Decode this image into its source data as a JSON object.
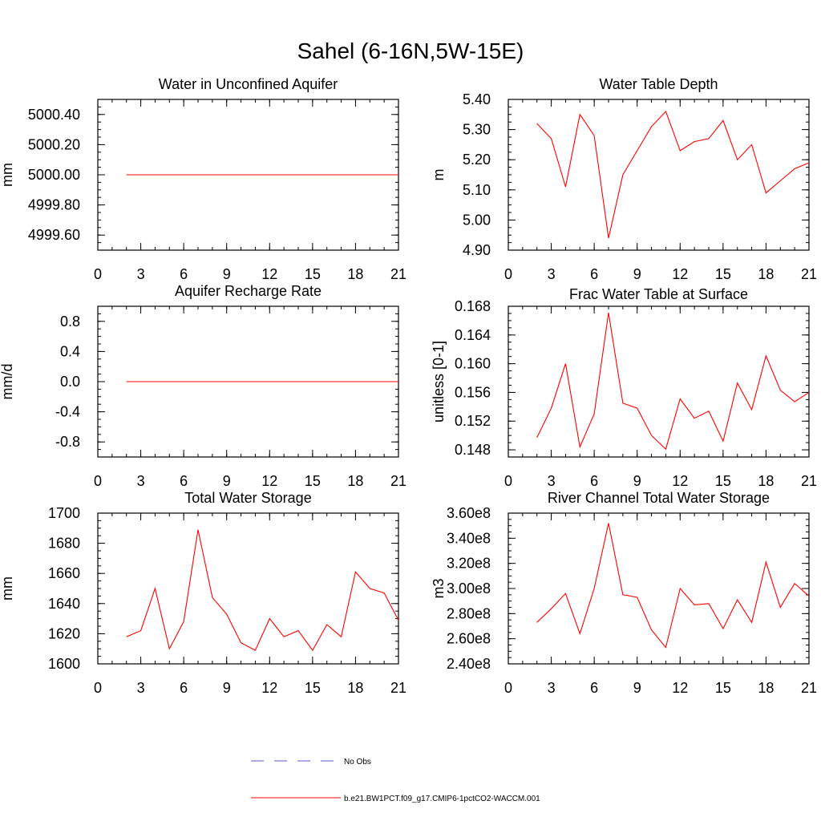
{
  "title": "Sahel (6-16N,5W-15E)",
  "legend": {
    "items": [
      {
        "label": "No Obs",
        "color": "#5a5acd",
        "dash": true
      },
      {
        "label": "b.e21.BW1PCT.f09_g17.CMIP6-1pctCO2-WACCM.001",
        "color": "#ff0000",
        "dash": false
      }
    ]
  },
  "chart_data": [
    {
      "type": "line",
      "title": "Water in Unconfined Aquifer",
      "ylabel": "mm",
      "xlim": [
        0,
        21
      ],
      "ylim": [
        4999.5,
        5000.5
      ],
      "xticks": [
        0,
        3,
        6,
        9,
        12,
        15,
        18,
        21
      ],
      "yticks": [
        4999.6,
        4999.8,
        5000.0,
        5000.2,
        5000.4
      ],
      "ytick_labels": [
        "4999.60",
        "4999.80",
        "5000.00",
        "5000.20",
        "5000.40"
      ],
      "yminor": 0.05,
      "series": [
        {
          "color": "#ff0000",
          "x": [
            2,
            3,
            4,
            5,
            6,
            7,
            8,
            9,
            10,
            11,
            12,
            13,
            14,
            15,
            16,
            17,
            18,
            19,
            20,
            21
          ],
          "y": [
            5000,
            5000,
            5000,
            5000,
            5000,
            5000,
            5000,
            5000,
            5000,
            5000,
            5000,
            5000,
            5000,
            5000,
            5000,
            5000,
            5000,
            5000,
            5000,
            5000
          ]
        }
      ]
    },
    {
      "type": "line",
      "title": "Water Table Depth",
      "ylabel": "m",
      "xlim": [
        0,
        21
      ],
      "ylim": [
        4.9,
        5.4
      ],
      "xticks": [
        0,
        3,
        6,
        9,
        12,
        15,
        18,
        21
      ],
      "yticks": [
        4.9,
        5.0,
        5.1,
        5.2,
        5.3,
        5.4
      ],
      "ytick_labels": [
        "4.90",
        "5.00",
        "5.10",
        "5.20",
        "5.30",
        "5.40"
      ],
      "yminor": 0.025,
      "series": [
        {
          "color": "#ff0000",
          "x": [
            2,
            3,
            4,
            5,
            6,
            7,
            8,
            9,
            10,
            11,
            12,
            13,
            14,
            15,
            16,
            17,
            18,
            19,
            20,
            21
          ],
          "y": [
            5.32,
            5.27,
            5.11,
            5.35,
            5.28,
            4.94,
            5.15,
            5.23,
            5.31,
            5.36,
            5.23,
            5.26,
            5.27,
            5.33,
            5.2,
            5.25,
            5.09,
            5.13,
            5.17,
            5.19
          ]
        }
      ]
    },
    {
      "type": "line",
      "title": "Aquifer Recharge Rate",
      "ylabel": "mm/d",
      "xlim": [
        0,
        21
      ],
      "ylim": [
        -1,
        1
      ],
      "xticks": [
        0,
        3,
        6,
        9,
        12,
        15,
        18,
        21
      ],
      "yticks": [
        -0.8,
        -0.4,
        0.0,
        0.4,
        0.8
      ],
      "ytick_labels": [
        "-0.8",
        "-0.4",
        "0.0",
        "0.4",
        "0.8"
      ],
      "yminor": 0.1,
      "series": [
        {
          "color": "#ff0000",
          "x": [
            2,
            3,
            4,
            5,
            6,
            7,
            8,
            9,
            10,
            11,
            12,
            13,
            14,
            15,
            16,
            17,
            18,
            19,
            20,
            21
          ],
          "y": [
            0,
            0,
            0,
            0,
            0,
            0,
            0,
            0,
            0,
            0,
            0,
            0,
            0,
            0,
            0,
            0,
            0,
            0,
            0,
            0
          ]
        }
      ]
    },
    {
      "type": "line",
      "title": "Frac Water Table at Surface",
      "ylabel": "unitless [0-1]",
      "xlim": [
        0,
        21
      ],
      "ylim": [
        0.147,
        0.168
      ],
      "xticks": [
        0,
        3,
        6,
        9,
        12,
        15,
        18,
        21
      ],
      "yticks": [
        0.148,
        0.152,
        0.156,
        0.16,
        0.164,
        0.168
      ],
      "ytick_labels": [
        "0.148",
        "0.152",
        "0.156",
        "0.160",
        "0.164",
        "0.168"
      ],
      "yminor": 0.001,
      "series": [
        {
          "color": "#ff0000",
          "x": [
            2,
            3,
            4,
            5,
            6,
            7,
            8,
            9,
            10,
            11,
            12,
            13,
            14,
            15,
            16,
            17,
            18,
            19,
            20,
            21
          ],
          "y": [
            0.1497,
            0.1538,
            0.16,
            0.1484,
            0.153,
            0.1671,
            0.1545,
            0.1538,
            0.15,
            0.1481,
            0.1551,
            0.1524,
            0.1534,
            0.1492,
            0.1573,
            0.1536,
            0.1611,
            0.1563,
            0.1547,
            0.156
          ]
        }
      ]
    },
    {
      "type": "line",
      "title": "Total Water Storage",
      "ylabel": "mm",
      "xlim": [
        0,
        21
      ],
      "ylim": [
        1600,
        1700
      ],
      "xticks": [
        0,
        3,
        6,
        9,
        12,
        15,
        18,
        21
      ],
      "yticks": [
        1600,
        1620,
        1640,
        1660,
        1680,
        1700
      ],
      "ytick_labels": [
        "1600",
        "1620",
        "1640",
        "1660",
        "1680",
        "1700"
      ],
      "yminor": 5,
      "series": [
        {
          "color": "#ff0000",
          "x": [
            2,
            3,
            4,
            5,
            6,
            7,
            8,
            9,
            10,
            11,
            12,
            13,
            14,
            15,
            16,
            17,
            18,
            19,
            20,
            21
          ],
          "y": [
            1618,
            1622,
            1650,
            1610,
            1628,
            1689,
            1644,
            1633,
            1614,
            1609,
            1630,
            1618,
            1622,
            1609,
            1626,
            1618,
            1661,
            1650,
            1647,
            1629
          ]
        }
      ]
    },
    {
      "type": "line",
      "title": "River Channel Total Water Storage",
      "ylabel": "m3",
      "xlim": [
        0,
        21
      ],
      "ylim": [
        240000000,
        360000000
      ],
      "xticks": [
        0,
        3,
        6,
        9,
        12,
        15,
        18,
        21
      ],
      "yticks": [
        240000000,
        260000000,
        280000000,
        300000000,
        320000000,
        340000000,
        360000000
      ],
      "ytick_labels": [
        "2.40e8",
        "2.60e8",
        "2.80e8",
        "3.00e8",
        "3.20e8",
        "3.40e8",
        "3.60e8"
      ],
      "yminor": 5000000,
      "series": [
        {
          "color": "#ff0000",
          "x": [
            2,
            3,
            4,
            5,
            6,
            7,
            8,
            9,
            10,
            11,
            12,
            13,
            14,
            15,
            16,
            17,
            18,
            19,
            20,
            21
          ],
          "y": [
            273000000,
            284000000,
            296000000,
            264000000,
            300000000,
            352000000,
            295000000,
            293000000,
            267000000,
            253000000,
            300000000,
            287000000,
            288000000,
            268000000,
            291000000,
            273000000,
            321000000,
            285000000,
            304000000,
            294000000
          ]
        }
      ]
    }
  ]
}
